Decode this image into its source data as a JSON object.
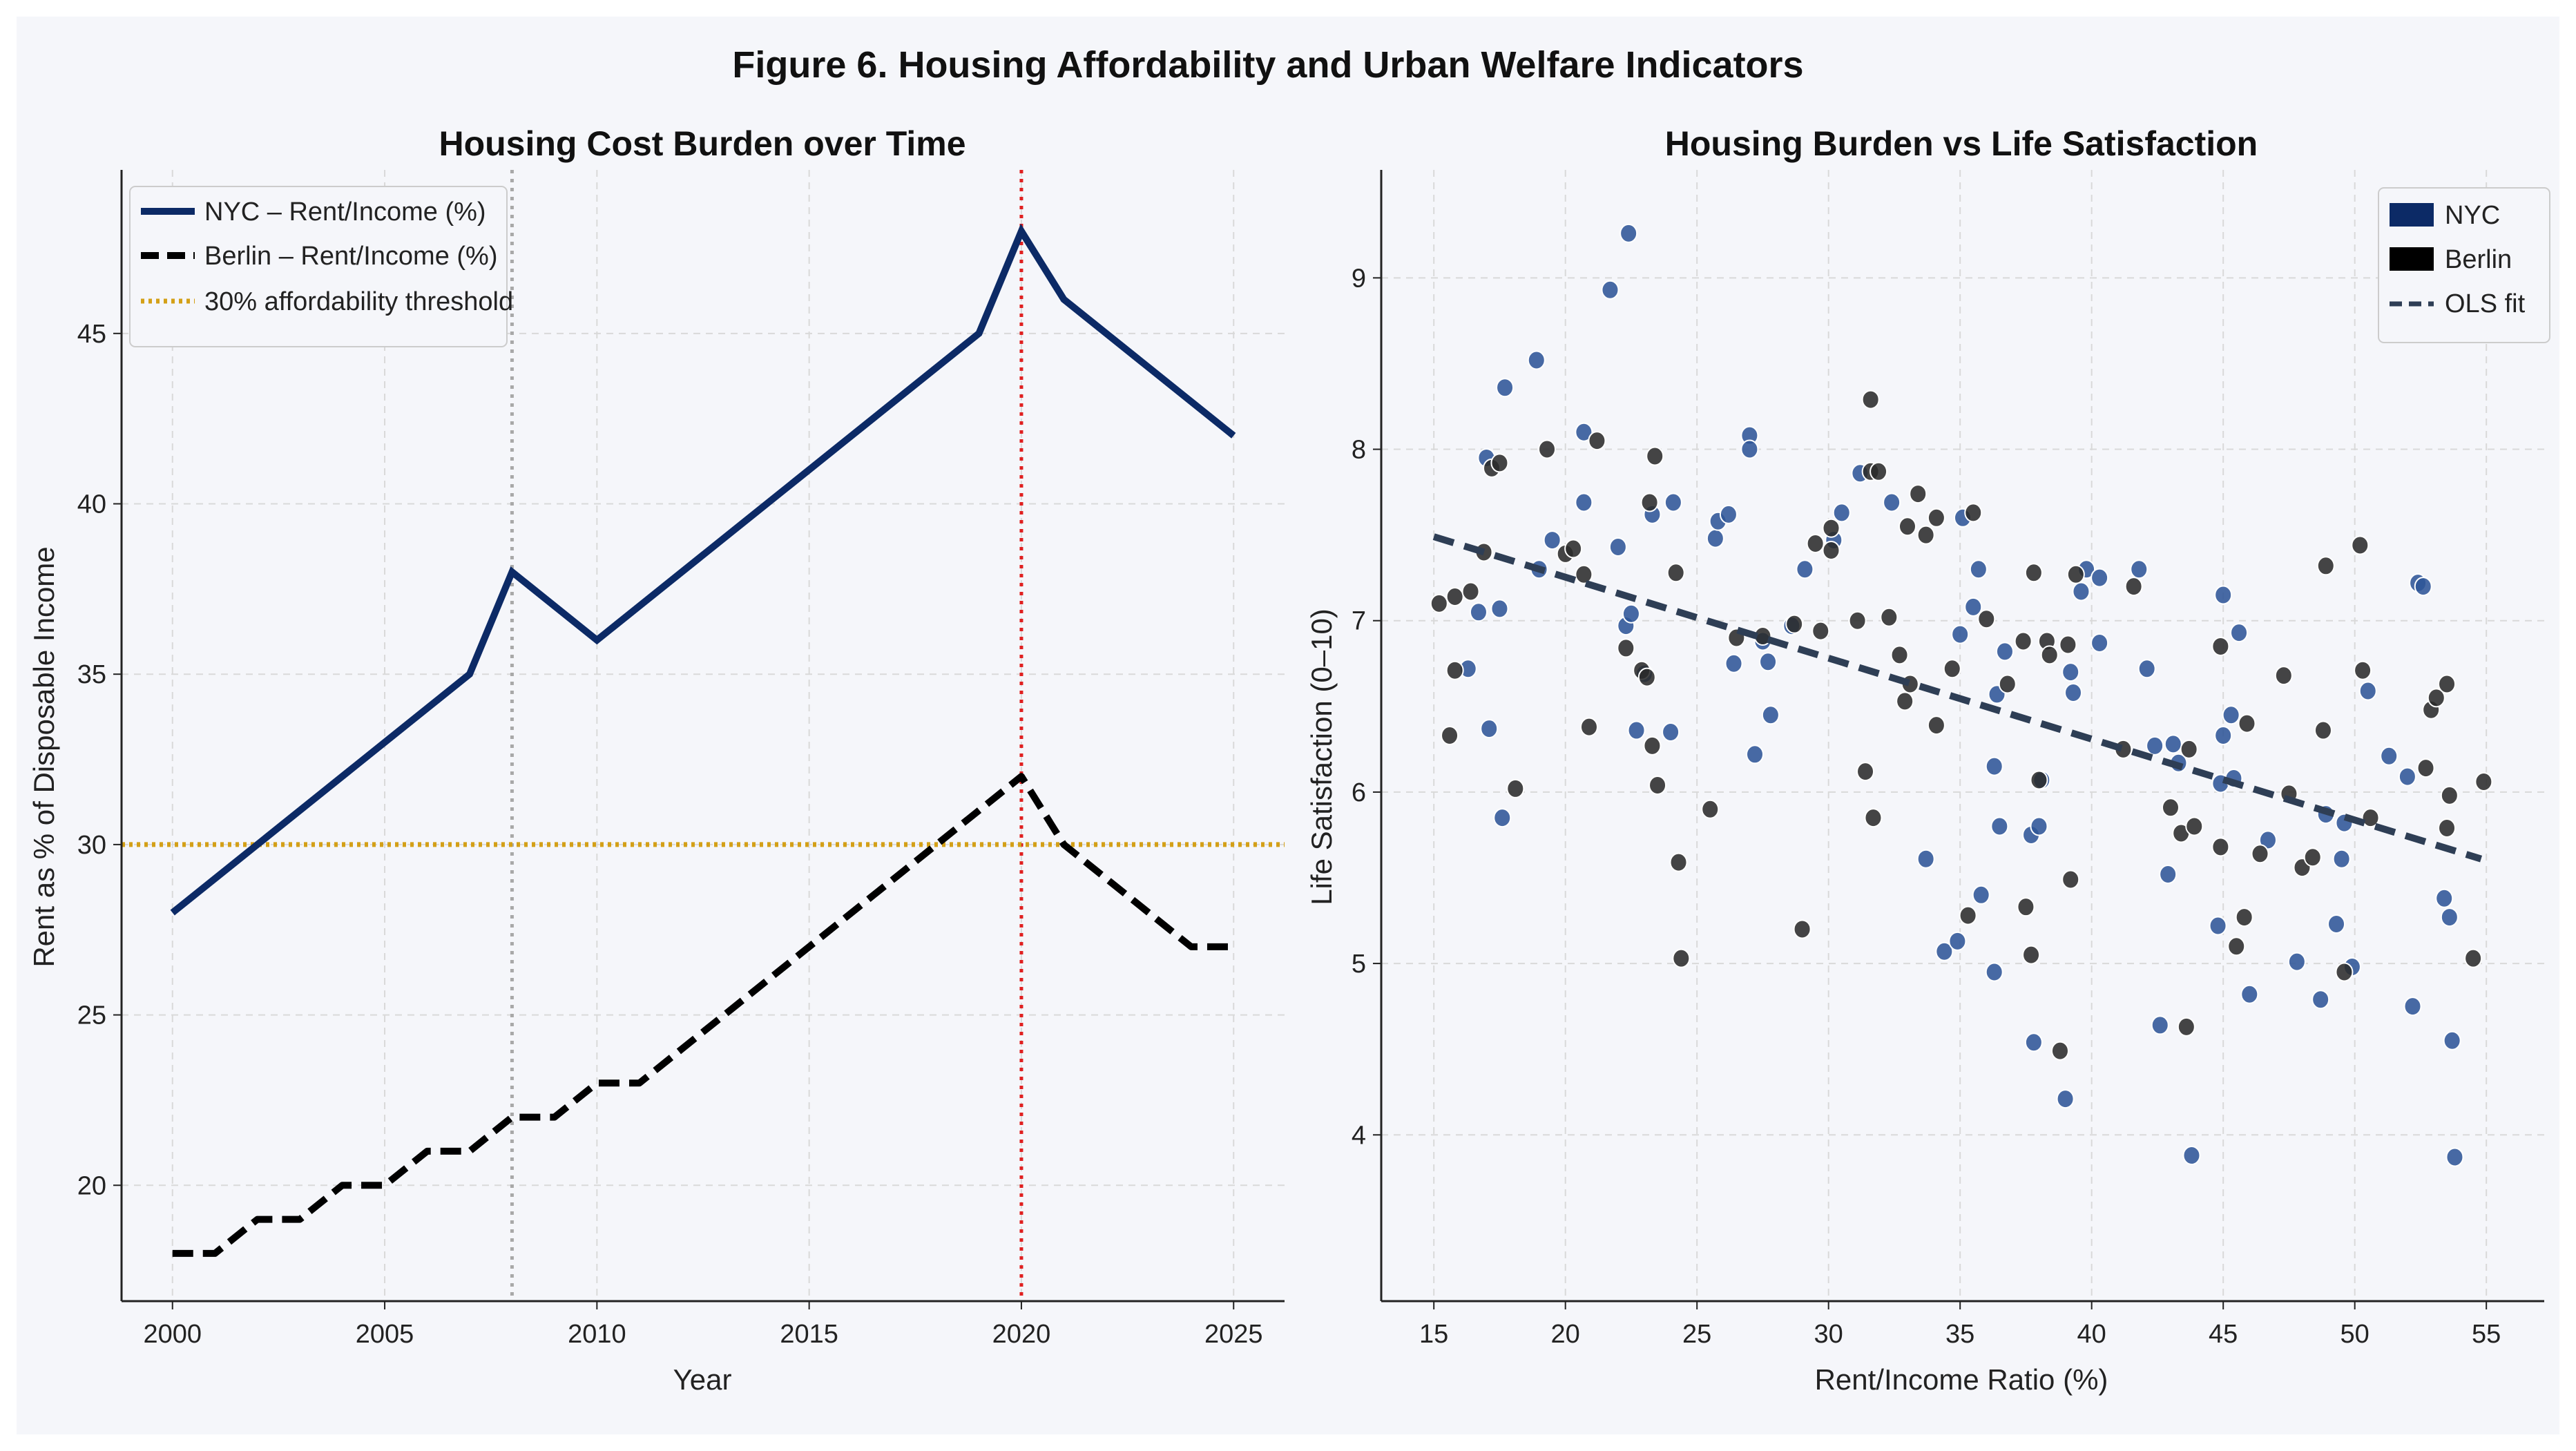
{
  "figure_title": "Figure 6. Housing Affordability and Urban Welfare Indicators",
  "colors": {
    "nyc": "#0c2a66",
    "berlin": "#000000",
    "threshold": "#d4a017",
    "marker_gray": "#a8a8a8",
    "marker_red": "#e02020",
    "ols": "#2e3e55",
    "nyc_point": "#2f5597",
    "berlin_point": "#2b2b2b"
  },
  "chart_data": [
    {
      "type": "line",
      "title": "Housing Cost Burden over Time",
      "xlabel": "Year",
      "ylabel": "Rent as % of Disposable Income",
      "xlim": [
        1998.8,
        2026.2
      ],
      "ylim": [
        16.6,
        49.8
      ],
      "xticks": [
        2000,
        2005,
        2010,
        2015,
        2020,
        2025
      ],
      "yticks": [
        20,
        25,
        30,
        35,
        40,
        45
      ],
      "grid": true,
      "legend_position": "top-left",
      "series": [
        {
          "name": "NYC – Rent/Income (%)",
          "style": "solid",
          "x": [
            2000,
            2007,
            2008,
            2010,
            2019,
            2020,
            2021,
            2025
          ],
          "y": [
            28,
            35,
            38,
            36,
            45,
            48,
            46,
            42
          ]
        },
        {
          "name": "Berlin – Rent/Income (%)",
          "style": "dashed",
          "x": [
            2000,
            2001,
            2002,
            2003,
            2004,
            2005,
            2006,
            2007,
            2008,
            2009,
            2010,
            2011,
            2020,
            2021,
            2024,
            2025
          ],
          "y": [
            18,
            18,
            19,
            19,
            20,
            20,
            21,
            21,
            22,
            22,
            23,
            23,
            32,
            30,
            27,
            27
          ]
        },
        {
          "name": "30% affordability threshold",
          "style": "dotted",
          "hline": 30
        }
      ],
      "vlines": [
        {
          "x": 2008,
          "color": "gray"
        },
        {
          "x": 2020,
          "color": "red"
        }
      ]
    },
    {
      "type": "scatter",
      "title": "Housing Burden vs Life Satisfaction",
      "xlabel": "Rent/Income Ratio (%)",
      "ylabel": "Life Satisfaction (0–10)",
      "xlim": [
        13.0,
        57.2
      ],
      "ylim": [
        3.03,
        9.63
      ],
      "xticks": [
        15,
        20,
        25,
        30,
        35,
        40,
        45,
        50,
        55
      ],
      "yticks": [
        4,
        5,
        6,
        7,
        8,
        9
      ],
      "grid": true,
      "legend_position": "top-right",
      "legend": [
        "NYC",
        "Berlin",
        "OLS fit"
      ],
      "ols_fit": {
        "x": [
          15,
          54.8
        ],
        "y": [
          7.49,
          5.61
        ]
      },
      "series": [
        {
          "name": "NYC",
          "points": [
            [
              16.3,
              6.72
            ],
            [
              16.7,
              7.05
            ],
            [
              17.0,
              7.95
            ],
            [
              17.1,
              6.37
            ],
            [
              17.5,
              7.07
            ],
            [
              17.6,
              5.85
            ],
            [
              17.7,
              8.36
            ],
            [
              18.9,
              8.52
            ],
            [
              19.0,
              7.3
            ],
            [
              19.5,
              7.47
            ],
            [
              20.7,
              8.1
            ],
            [
              20.7,
              7.69
            ],
            [
              21.7,
              8.93
            ],
            [
              22.0,
              7.43
            ],
            [
              22.3,
              6.97
            ],
            [
              22.4,
              9.26
            ],
            [
              22.5,
              7.04
            ],
            [
              22.7,
              6.36
            ],
            [
              23.0,
              6.69
            ],
            [
              23.3,
              7.62
            ],
            [
              24.0,
              6.35
            ],
            [
              24.1,
              7.69
            ],
            [
              25.7,
              7.48
            ],
            [
              25.8,
              7.58
            ],
            [
              26.2,
              7.62
            ],
            [
              26.4,
              6.75
            ],
            [
              27.0,
              8.08
            ],
            [
              27.0,
              8.0
            ],
            [
              27.2,
              6.22
            ],
            [
              27.5,
              6.88
            ],
            [
              27.7,
              6.76
            ],
            [
              27.8,
              6.45
            ],
            [
              28.6,
              6.97
            ],
            [
              29.1,
              7.3
            ],
            [
              30.2,
              7.47
            ],
            [
              30.5,
              7.63
            ],
            [
              31.2,
              7.86
            ],
            [
              32.4,
              7.69
            ],
            [
              33.7,
              5.61
            ],
            [
              34.4,
              5.07
            ],
            [
              34.9,
              5.13
            ],
            [
              35.0,
              6.92
            ],
            [
              35.1,
              7.6
            ],
            [
              35.5,
              7.08
            ],
            [
              35.7,
              7.3
            ],
            [
              35.8,
              5.4
            ],
            [
              36.3,
              6.15
            ],
            [
              36.3,
              4.95
            ],
            [
              36.4,
              6.57
            ],
            [
              36.5,
              5.8
            ],
            [
              36.7,
              6.82
            ],
            [
              37.7,
              5.75
            ],
            [
              37.8,
              4.54
            ],
            [
              38.0,
              5.8
            ],
            [
              38.1,
              6.07
            ],
            [
              39.0,
              4.21
            ],
            [
              39.2,
              6.7
            ],
            [
              39.3,
              6.58
            ],
            [
              39.6,
              7.17
            ],
            [
              39.8,
              7.3
            ],
            [
              40.3,
              7.25
            ],
            [
              40.3,
              6.87
            ],
            [
              41.8,
              7.3
            ],
            [
              42.1,
              6.72
            ],
            [
              42.4,
              6.27
            ],
            [
              42.6,
              4.64
            ],
            [
              42.9,
              5.52
            ],
            [
              43.1,
              6.28
            ],
            [
              43.3,
              6.17
            ],
            [
              43.8,
              3.88
            ],
            [
              44.8,
              5.22
            ],
            [
              44.9,
              6.05
            ],
            [
              45.0,
              6.33
            ],
            [
              45.0,
              7.15
            ],
            [
              45.3,
              6.45
            ],
            [
              45.4,
              6.08
            ],
            [
              45.6,
              6.93
            ],
            [
              46.0,
              4.82
            ],
            [
              46.7,
              5.72
            ],
            [
              47.8,
              5.01
            ],
            [
              48.7,
              4.79
            ],
            [
              48.9,
              5.87
            ],
            [
              49.3,
              5.23
            ],
            [
              49.5,
              5.61
            ],
            [
              49.6,
              5.82
            ],
            [
              49.9,
              4.98
            ],
            [
              50.5,
              6.59
            ],
            [
              51.3,
              6.21
            ],
            [
              52.0,
              6.09
            ],
            [
              52.2,
              4.75
            ],
            [
              52.4,
              7.22
            ],
            [
              52.6,
              7.2
            ],
            [
              53.4,
              5.38
            ],
            [
              53.6,
              5.27
            ],
            [
              53.7,
              4.55
            ],
            [
              53.8,
              3.87
            ]
          ]
        },
        {
          "name": "Berlin",
          "points": [
            [
              15.2,
              7.1
            ],
            [
              15.6,
              6.33
            ],
            [
              15.8,
              6.71
            ],
            [
              15.8,
              7.14
            ],
            [
              16.4,
              7.17
            ],
            [
              16.9,
              7.4
            ],
            [
              17.2,
              7.89
            ],
            [
              17.5,
              7.92
            ],
            [
              18.1,
              6.02
            ],
            [
              19.3,
              8.0
            ],
            [
              20.0,
              7.39
            ],
            [
              20.3,
              7.42
            ],
            [
              20.7,
              7.27
            ],
            [
              20.9,
              6.38
            ],
            [
              21.2,
              8.05
            ],
            [
              22.3,
              6.84
            ],
            [
              22.9,
              6.71
            ],
            [
              23.1,
              6.67
            ],
            [
              23.2,
              7.69
            ],
            [
              23.3,
              6.27
            ],
            [
              23.4,
              7.96
            ],
            [
              23.5,
              6.04
            ],
            [
              24.2,
              7.28
            ],
            [
              24.3,
              5.59
            ],
            [
              24.4,
              5.03
            ],
            [
              25.5,
              5.9
            ],
            [
              26.5,
              6.9
            ],
            [
              27.5,
              6.91
            ],
            [
              28.7,
              6.98
            ],
            [
              29.0,
              5.2
            ],
            [
              29.5,
              7.45
            ],
            [
              29.7,
              6.94
            ],
            [
              30.1,
              7.41
            ],
            [
              30.1,
              7.54
            ],
            [
              31.1,
              7.0
            ],
            [
              31.4,
              6.12
            ],
            [
              31.6,
              8.29
            ],
            [
              31.6,
              7.87
            ],
            [
              31.7,
              5.85
            ],
            [
              31.9,
              7.87
            ],
            [
              32.3,
              7.02
            ],
            [
              32.7,
              6.8
            ],
            [
              32.9,
              6.53
            ],
            [
              33.0,
              7.55
            ],
            [
              33.1,
              6.63
            ],
            [
              33.4,
              7.74
            ],
            [
              33.7,
              7.5
            ],
            [
              34.1,
              6.39
            ],
            [
              34.1,
              7.6
            ],
            [
              34.7,
              6.72
            ],
            [
              35.3,
              5.28
            ],
            [
              35.5,
              7.63
            ],
            [
              36.0,
              7.01
            ],
            [
              36.8,
              6.63
            ],
            [
              37.4,
              6.88
            ],
            [
              37.5,
              5.33
            ],
            [
              37.7,
              5.05
            ],
            [
              37.8,
              7.28
            ],
            [
              38.0,
              6.07
            ],
            [
              38.3,
              6.88
            ],
            [
              38.4,
              6.8
            ],
            [
              38.8,
              4.49
            ],
            [
              39.1,
              6.86
            ],
            [
              39.2,
              5.49
            ],
            [
              39.4,
              7.27
            ],
            [
              41.2,
              6.25
            ],
            [
              41.6,
              7.2
            ],
            [
              43.0,
              5.91
            ],
            [
              43.4,
              5.76
            ],
            [
              43.6,
              4.63
            ],
            [
              43.7,
              6.25
            ],
            [
              43.9,
              5.8
            ],
            [
              44.9,
              5.68
            ],
            [
              44.9,
              6.85
            ],
            [
              45.5,
              5.1
            ],
            [
              45.8,
              5.27
            ],
            [
              45.9,
              6.4
            ],
            [
              46.4,
              5.64
            ],
            [
              47.3,
              6.68
            ],
            [
              47.5,
              5.99
            ],
            [
              48.0,
              5.56
            ],
            [
              48.4,
              5.62
            ],
            [
              48.8,
              6.36
            ],
            [
              48.9,
              7.32
            ],
            [
              49.6,
              4.95
            ],
            [
              50.2,
              7.44
            ],
            [
              50.3,
              6.71
            ],
            [
              50.6,
              5.85
            ],
            [
              52.7,
              6.14
            ],
            [
              52.9,
              6.48
            ],
            [
              53.1,
              6.55
            ],
            [
              53.5,
              6.63
            ],
            [
              53.5,
              5.79
            ],
            [
              53.6,
              5.98
            ],
            [
              54.5,
              5.03
            ],
            [
              54.9,
              6.06
            ]
          ]
        }
      ]
    }
  ]
}
